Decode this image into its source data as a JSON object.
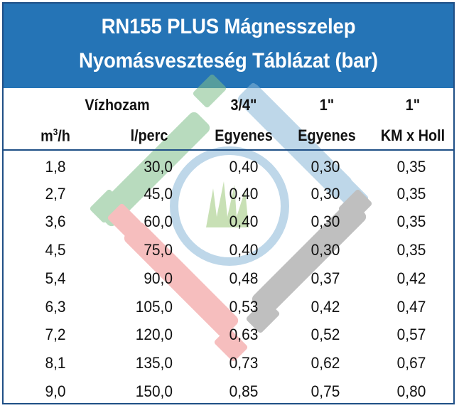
{
  "title": {
    "line1": "RN155 PLUS Mágnesszelep",
    "line2": "Nyomásveszteség Táblázat (bar)"
  },
  "header": {
    "flow_label": "Vízhozam",
    "col_3_4": "3/4\"",
    "col_1a": "1\"",
    "col_1b": "1\"",
    "unit_m3_base": "m",
    "unit_m3_exp": "3",
    "unit_m3_tail": "/h",
    "unit_lperc": "l/perc",
    "type_3_4": "Egyenes",
    "type_1a": "Egyenes",
    "type_1b": "KM x Holl"
  },
  "rows": [
    {
      "m3h": "1,8",
      "lperc": "30,0",
      "v34": "0,40",
      "v1": "0,30",
      "v1km": "0,35"
    },
    {
      "m3h": "2,7",
      "lperc": "45,0",
      "v34": "0,40",
      "v1": "0,30",
      "v1km": "0,35"
    },
    {
      "m3h": "3,6",
      "lperc": "60,0",
      "v34": "0,40",
      "v1": "0,30",
      "v1km": "0,35"
    },
    {
      "m3h": "4,5",
      "lperc": "75,0",
      "v34": "0,40",
      "v1": "0,30",
      "v1km": "0,35"
    },
    {
      "m3h": "5,4",
      "lperc": "90,0",
      "v34": "0,48",
      "v1": "0,37",
      "v1km": "0,42"
    },
    {
      "m3h": "6,3",
      "lperc": "105,0",
      "v34": "0,53",
      "v1": "0,42",
      "v1km": "0,47"
    },
    {
      "m3h": "7,2",
      "lperc": "120,0",
      "v34": "0,63",
      "v1": "0,52",
      "v1km": "0,57"
    },
    {
      "m3h": "8,1",
      "lperc": "135,0",
      "v34": "0,73",
      "v1": "0,62",
      "v1km": "0,67"
    },
    {
      "m3h": "9,0",
      "lperc": "150,0",
      "v34": "0,85",
      "v1": "0,75",
      "v1km": "0,80"
    }
  ],
  "colors": {
    "title_bg": "#2574b6",
    "border": "#1f4f86",
    "wm_green": "#7fbf8a",
    "wm_blue": "#8ab8d8",
    "wm_red": "#ef8a8a",
    "wm_gray": "#8c8c8c"
  },
  "icons": {
    "watermark": "grass-logo-icon"
  }
}
